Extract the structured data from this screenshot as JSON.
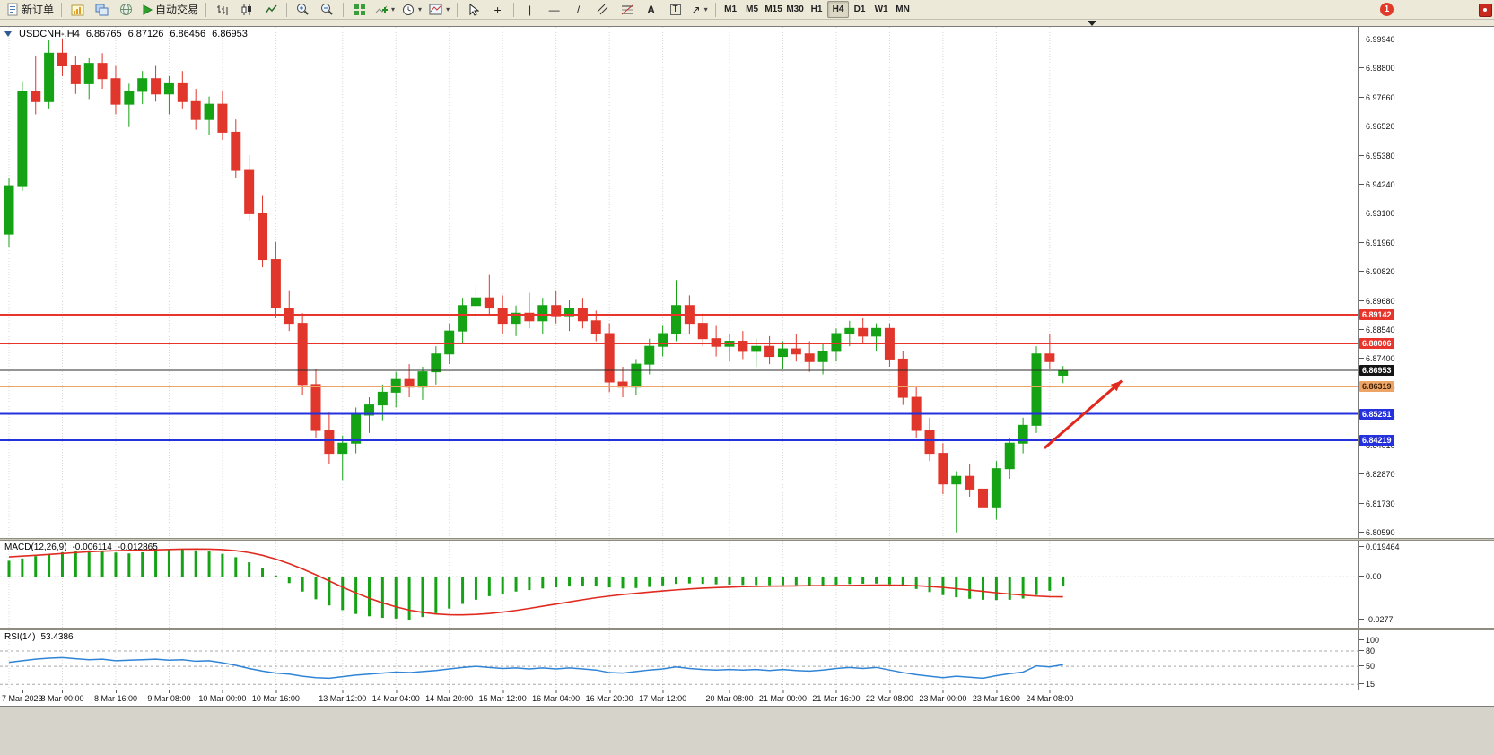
{
  "toolbar": {
    "new_order_label": "新订单",
    "autotrade_label": "自动交易",
    "timeframes": [
      "M1",
      "M5",
      "M15",
      "M30",
      "H1",
      "H4",
      "D1",
      "W1",
      "MN"
    ],
    "active_timeframe": "H4",
    "notification_count": "1",
    "glyphs": {
      "crosshair": "+",
      "vline": "|",
      "hline": "—",
      "trendline": "/",
      "text": "A",
      "label": "T",
      "arrow": "↗",
      "dropdown": "▾"
    }
  },
  "chart_data": [
    {
      "type": "candlestick",
      "title": "USDCNH-,H4",
      "ohlc_display": {
        "open": "6.86765",
        "high": "6.87126",
        "low": "6.86456",
        "close": "6.86953"
      },
      "ylim": [
        6.8038,
        7.0043
      ],
      "grid": "vertical-dotted",
      "colors": {
        "up": "#15a315",
        "down": "#e0362b"
      },
      "layout": {
        "x_offset": 10,
        "spacing": 14.87,
        "body_width": 10
      },
      "y_ticks": [
        "6.99940",
        "6.98800",
        "6.97660",
        "6.96520",
        "6.95380",
        "6.94240",
        "6.93100",
        "6.91960",
        "6.90820",
        "6.89680",
        "6.88540",
        "6.87400",
        "6.86260",
        "6.85120",
        "6.84010",
        "6.82870",
        "6.81730",
        "6.80590"
      ],
      "x_ticks": [
        {
          "label": "7 Mar 2023",
          "index": 0
        },
        {
          "label": "8 Mar 00:00",
          "index": 4
        },
        {
          "label": "8 Mar 16:00",
          "index": 8
        },
        {
          "label": "9 Mar 08:00",
          "index": 12
        },
        {
          "label": "10 Mar 00:00",
          "index": 16
        },
        {
          "label": "10 Mar 16:00",
          "index": 20
        },
        {
          "label": "13 Mar 12:00",
          "index": 25
        },
        {
          "label": "14 Mar 04:00",
          "index": 29
        },
        {
          "label": "14 Mar 20:00",
          "index": 33
        },
        {
          "label": "15 Mar 12:00",
          "index": 37
        },
        {
          "label": "16 Mar 04:00",
          "index": 41
        },
        {
          "label": "16 Mar 20:00",
          "index": 45
        },
        {
          "label": "17 Mar 12:00",
          "index": 49
        },
        {
          "label": "20 Mar 08:00",
          "index": 54
        },
        {
          "label": "21 Mar 00:00",
          "index": 58
        },
        {
          "label": "21 Mar 16:00",
          "index": 62
        },
        {
          "label": "22 Mar 08:00",
          "index": 66
        },
        {
          "label": "23 Mar 00:00",
          "index": 70
        },
        {
          "label": "23 Mar 16:00",
          "index": 74
        },
        {
          "label": "24 Mar 08:00",
          "index": 78
        }
      ],
      "candles": [
        [
          6.923,
          6.945,
          6.918,
          6.942
        ],
        [
          6.942,
          6.983,
          6.94,
          6.979
        ],
        [
          6.979,
          6.993,
          6.97,
          6.975
        ],
        [
          6.975,
          6.999,
          6.972,
          6.994
        ],
        [
          6.994,
          6.9994,
          6.985,
          6.989
        ],
        [
          6.989,
          6.993,
          6.978,
          6.982
        ],
        [
          6.982,
          6.992,
          6.976,
          6.99
        ],
        [
          6.99,
          6.994,
          6.98,
          6.984
        ],
        [
          6.984,
          6.989,
          6.97,
          6.974
        ],
        [
          6.974,
          6.982,
          6.965,
          6.979
        ],
        [
          6.979,
          6.987,
          6.974,
          6.984
        ],
        [
          6.984,
          6.989,
          6.975,
          6.978
        ],
        [
          6.978,
          6.985,
          6.97,
          6.982
        ],
        [
          6.982,
          6.987,
          6.972,
          6.975
        ],
        [
          6.975,
          6.98,
          6.964,
          6.968
        ],
        [
          6.968,
          6.977,
          6.962,
          6.974
        ],
        [
          6.974,
          6.979,
          6.96,
          6.963
        ],
        [
          6.963,
          6.968,
          6.945,
          6.948
        ],
        [
          6.948,
          6.954,
          6.928,
          6.931
        ],
        [
          6.931,
          6.938,
          6.91,
          6.913
        ],
        [
          6.913,
          6.92,
          6.89,
          6.894
        ],
        [
          6.894,
          6.901,
          6.885,
          6.888
        ],
        [
          6.888,
          6.892,
          6.86,
          6.864
        ],
        [
          6.864,
          6.87,
          6.843,
          6.846
        ],
        [
          6.846,
          6.853,
          6.833,
          6.837
        ],
        [
          6.837,
          6.844,
          6.8265,
          6.841
        ],
        [
          6.841,
          6.855,
          6.837,
          6.852
        ],
        [
          6.852,
          6.859,
          6.845,
          6.856
        ],
        [
          6.856,
          6.864,
          6.85,
          6.861
        ],
        [
          6.861,
          6.869,
          6.855,
          6.866
        ],
        [
          6.866,
          6.872,
          6.859,
          6.863
        ],
        [
          6.863,
          6.871,
          6.858,
          6.869
        ],
        [
          6.869,
          6.879,
          6.864,
          6.876
        ],
        [
          6.876,
          6.888,
          6.872,
          6.885
        ],
        [
          6.885,
          6.898,
          6.88,
          6.895
        ],
        [
          6.895,
          6.903,
          6.889,
          6.898
        ],
        [
          6.898,
          6.907,
          6.891,
          6.894
        ],
        [
          6.894,
          6.899,
          6.884,
          6.888
        ],
        [
          6.888,
          6.895,
          6.883,
          6.892
        ],
        [
          6.892,
          6.9,
          6.886,
          6.889
        ],
        [
          6.889,
          6.898,
          6.884,
          6.895
        ],
        [
          6.895,
          6.901,
          6.888,
          6.891
        ],
        [
          6.891,
          6.897,
          6.885,
          6.894
        ],
        [
          6.894,
          6.898,
          6.886,
          6.889
        ],
        [
          6.889,
          6.893,
          6.881,
          6.884
        ],
        [
          6.884,
          6.888,
          6.861,
          6.865
        ],
        [
          6.865,
          6.871,
          6.859,
          6.863
        ],
        [
          6.863,
          6.874,
          6.86,
          6.872
        ],
        [
          6.872,
          6.882,
          6.868,
          6.879
        ],
        [
          6.879,
          6.887,
          6.875,
          6.884
        ],
        [
          6.884,
          6.905,
          6.881,
          6.895
        ],
        [
          6.895,
          6.899,
          6.884,
          6.888
        ],
        [
          6.888,
          6.892,
          6.879,
          6.882
        ],
        [
          6.882,
          6.887,
          6.875,
          6.879
        ],
        [
          6.879,
          6.884,
          6.873,
          6.881
        ],
        [
          6.881,
          6.885,
          6.874,
          6.877
        ],
        [
          6.877,
          6.882,
          6.871,
          6.879
        ],
        [
          6.879,
          6.883,
          6.872,
          6.875
        ],
        [
          6.875,
          6.881,
          6.87,
          6.878
        ],
        [
          6.878,
          6.884,
          6.873,
          6.876
        ],
        [
          6.876,
          6.881,
          6.869,
          6.873
        ],
        [
          6.873,
          6.88,
          6.868,
          6.877
        ],
        [
          6.877,
          6.886,
          6.873,
          6.884
        ],
        [
          6.884,
          6.889,
          6.879,
          6.886
        ],
        [
          6.886,
          6.89,
          6.88,
          6.883
        ],
        [
          6.883,
          6.888,
          6.877,
          6.886
        ],
        [
          6.886,
          6.888,
          6.871,
          6.874
        ],
        [
          6.874,
          6.877,
          6.856,
          6.859
        ],
        [
          6.859,
          6.863,
          6.843,
          6.846
        ],
        [
          6.846,
          6.851,
          6.834,
          6.837
        ],
        [
          6.837,
          6.841,
          6.821,
          6.825
        ],
        [
          6.825,
          6.83,
          6.806,
          6.828
        ],
        [
          6.828,
          6.833,
          6.82,
          6.823
        ],
        [
          6.823,
          6.829,
          6.813,
          6.816
        ],
        [
          6.816,
          6.834,
          6.811,
          6.831
        ],
        [
          6.831,
          6.843,
          6.827,
          6.841
        ],
        [
          6.841,
          6.851,
          6.837,
          6.848
        ],
        [
          6.848,
          6.879,
          6.845,
          6.876
        ],
        [
          6.876,
          6.884,
          6.87,
          6.873
        ],
        [
          6.86765,
          6.87126,
          6.86456,
          6.86953
        ]
      ],
      "hlines": [
        {
          "name": "resistance-line-1",
          "price": 6.89142,
          "color": "#e8352b",
          "width": 2,
          "tag": {
            "text": "6.89142",
            "bg": "#e8352b",
            "fg": "#ffffff"
          }
        },
        {
          "name": "resistance-line-2",
          "price": 6.88006,
          "color": "#e8352b",
          "width": 2,
          "tag": {
            "text": "6.88006",
            "bg": "#e8352b",
            "fg": "#ffffff"
          }
        },
        {
          "name": "bid-price-line",
          "price": 6.86953,
          "color": "#2b2b2b",
          "width": 1,
          "tag": {
            "text": "6.86953",
            "bg": "#141414",
            "fg": "#ffffff"
          }
        },
        {
          "name": "support-line-orange",
          "price": 6.86319,
          "color": "#eda467",
          "width": 2,
          "tag": {
            "text": "6.86319",
            "bg": "#eda467",
            "fg": "#402000"
          }
        },
        {
          "name": "support-line-1",
          "price": 6.85251,
          "color": "#2531dd",
          "width": 2,
          "tag": {
            "text": "6.85251",
            "bg": "#2531dd",
            "fg": "#ffffff"
          }
        },
        {
          "name": "support-line-2",
          "price": 6.84219,
          "color": "#2531dd",
          "width": 2,
          "tag": {
            "text": "6.84219",
            "bg": "#2531dd",
            "fg": "#ffffff"
          }
        }
      ],
      "arrow": {
        "x1_index": 77.6,
        "price1": 6.839,
        "x2_index": 83.4,
        "price2": 6.8655,
        "color": "#e0281e",
        "width": 3
      }
    },
    {
      "type": "bar",
      "name": "MACD(12,26,9)",
      "values_display": [
        "-0.006114",
        "-0.012865"
      ],
      "ylim": [
        -0.0329,
        0.0235
      ],
      "colors": {
        "histogram": "#15a315",
        "signal": "#e02a20"
      },
      "y_ticks": [
        {
          "value": 0.019464,
          "label": "0.019464"
        },
        {
          "value": 0,
          "label": "0.00"
        },
        {
          "value": -0.0277,
          "label": "-0.0277"
        }
      ],
      "histogram": [
        0.0105,
        0.012,
        0.0135,
        0.015,
        0.016,
        0.0168,
        0.0172,
        0.0165,
        0.0158,
        0.0152,
        0.016,
        0.0168,
        0.0175,
        0.018,
        0.0172,
        0.0165,
        0.015,
        0.0128,
        0.0095,
        0.0055,
        0.001,
        -0.004,
        -0.0095,
        -0.0145,
        -0.0185,
        -0.0215,
        -0.024,
        -0.0255,
        -0.0265,
        -0.027,
        -0.0277,
        -0.026,
        -0.0235,
        -0.0205,
        -0.0175,
        -0.0148,
        -0.0125,
        -0.0108,
        -0.0095,
        -0.0085,
        -0.0075,
        -0.0068,
        -0.0062,
        -0.006,
        -0.0062,
        -0.0068,
        -0.0075,
        -0.0072,
        -0.0065,
        -0.0055,
        -0.0045,
        -0.0042,
        -0.0045,
        -0.0048,
        -0.005,
        -0.0052,
        -0.0053,
        -0.0054,
        -0.0053,
        -0.0052,
        -0.0054,
        -0.0053,
        -0.005,
        -0.0046,
        -0.0044,
        -0.0043,
        -0.0048,
        -0.006,
        -0.0078,
        -0.0098,
        -0.0118,
        -0.0132,
        -0.0142,
        -0.0148,
        -0.015,
        -0.0148,
        -0.014,
        -0.0118,
        -0.009,
        -0.006114
      ],
      "signal": [
        0.013,
        0.0135,
        0.014,
        0.0146,
        0.0152,
        0.0158,
        0.0163,
        0.0167,
        0.017,
        0.0172,
        0.0174,
        0.0176,
        0.0178,
        0.018,
        0.0181,
        0.018,
        0.0177,
        0.017,
        0.0158,
        0.014,
        0.0116,
        0.0086,
        0.0052,
        0.0014,
        -0.0026,
        -0.0066,
        -0.0104,
        -0.0138,
        -0.0168,
        -0.0194,
        -0.0215,
        -0.023,
        -0.024,
        -0.0245,
        -0.0246,
        -0.0243,
        -0.0237,
        -0.0228,
        -0.0217,
        -0.0204,
        -0.019,
        -0.0176,
        -0.0162,
        -0.0148,
        -0.0135,
        -0.0124,
        -0.0114,
        -0.0106,
        -0.0098,
        -0.0091,
        -0.0084,
        -0.0078,
        -0.0073,
        -0.0069,
        -0.0066,
        -0.0063,
        -0.0061,
        -0.006,
        -0.0059,
        -0.0058,
        -0.0057,
        -0.0057,
        -0.0056,
        -0.0055,
        -0.0054,
        -0.0053,
        -0.0053,
        -0.0054,
        -0.0057,
        -0.0062,
        -0.0068,
        -0.0076,
        -0.0085,
        -0.0094,
        -0.0103,
        -0.0111,
        -0.0118,
        -0.0124,
        -0.0128,
        -0.012865
      ]
    },
    {
      "type": "line",
      "name": "RSI(14)",
      "value_display": "53.4386",
      "ylim": [
        5,
        120
      ],
      "color": "#2f84d6",
      "levels": [
        80,
        50,
        15
      ],
      "y_ticks": [
        {
          "value": 100,
          "label": "100"
        },
        {
          "value": 80,
          "label": "80"
        },
        {
          "value": 50,
          "label": "50"
        },
        {
          "value": 15,
          "label": "15"
        }
      ],
      "values": [
        58,
        61,
        64,
        66,
        67,
        65,
        63,
        64,
        61,
        62,
        63,
        64,
        62,
        63,
        60,
        61,
        57,
        52,
        46,
        41,
        37,
        35,
        31,
        28,
        27,
        30,
        33,
        35,
        37,
        39,
        38,
        40,
        42,
        45,
        48,
        50,
        48,
        46,
        47,
        45,
        47,
        45,
        47,
        45,
        43,
        38,
        37,
        40,
        43,
        45,
        49,
        46,
        44,
        43,
        44,
        43,
        44,
        42,
        44,
        42,
        41,
        43,
        46,
        48,
        46,
        48,
        43,
        38,
        34,
        31,
        28,
        31,
        29,
        27,
        32,
        36,
        39,
        51,
        49,
        53.4386
      ]
    }
  ]
}
